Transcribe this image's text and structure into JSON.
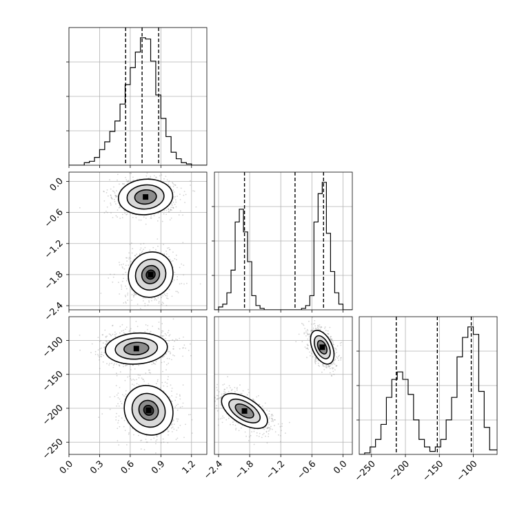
{
  "chart_data": {
    "type": "corner",
    "parameters": [
      {
        "axis_range": [
          0.0,
          1.35
        ],
        "ticks": [
          "0.0",
          "0.3",
          "0.6",
          "0.9",
          "1.2"
        ],
        "tick_values": [
          0.0,
          0.3,
          0.6,
          0.9,
          1.2
        ]
      },
      {
        "axis_range": [
          -2.48,
          0.18
        ],
        "ticks": [
          "-2.4",
          "-1.8",
          "-1.2",
          "-0.6",
          "0.0"
        ],
        "tick_values": [
          -2.4,
          -1.8,
          -1.2,
          -0.6,
          0.0
        ]
      },
      {
        "axis_range": [
          -268,
          -65
        ],
        "ticks": [
          "-250",
          "-200",
          "-150",
          "-100"
        ],
        "tick_values": [
          -250,
          -200,
          -150,
          -100
        ]
      }
    ],
    "histograms": [
      {
        "parameter": 0,
        "bin_edges": [
          0.0,
          0.05,
          0.1,
          0.15,
          0.2,
          0.25,
          0.3,
          0.35,
          0.4,
          0.45,
          0.5,
          0.55,
          0.6,
          0.65,
          0.7,
          0.75,
          0.8,
          0.85,
          0.9,
          0.95,
          1.0,
          1.05,
          1.1,
          1.15,
          1.2,
          1.25,
          1.3,
          1.35
        ],
        "counts": [
          0,
          0,
          0,
          2,
          3,
          6,
          12,
          18,
          26,
          34,
          47,
          62,
          75,
          87,
          98,
          97,
          80,
          54,
          36,
          22,
          10,
          5,
          2,
          1,
          0,
          0,
          0
        ],
        "quantiles": [
          0.555,
          0.716,
          0.878
        ]
      },
      {
        "parameter": 1,
        "bin_edges": [
          -2.48,
          -2.4,
          -2.32,
          -2.24,
          -2.16,
          -2.08,
          -2.0,
          -1.92,
          -1.84,
          -1.76,
          -1.68,
          -1.6,
          -1.52,
          -1.44,
          -1.36,
          -1.28,
          -1.2,
          -1.12,
          -1.04,
          -0.96,
          -0.88,
          -0.8,
          -0.72,
          -0.64,
          -0.56,
          -0.48,
          -0.4,
          -0.32,
          -0.24,
          -0.16,
          -0.08,
          0.0,
          0.08,
          0.18
        ],
        "counts": [
          0,
          2,
          4,
          12,
          28,
          62,
          71,
          55,
          34,
          10,
          3,
          1,
          0,
          0,
          0,
          0,
          0,
          0,
          0,
          0,
          0,
          1,
          3,
          10,
          62,
          82,
          90,
          54,
          27,
          12,
          4,
          0,
          0
        ],
        "quantiles": [
          -1.9,
          -0.925,
          -0.375
        ]
      },
      {
        "parameter": 2,
        "bin_edges": [
          -268,
          -260,
          -252,
          -244,
          -236,
          -228,
          -220,
          -212,
          -204,
          -196,
          -188,
          -180,
          -172,
          -164,
          -156,
          -148,
          -140,
          -132,
          -124,
          -116,
          -108,
          -100,
          -92,
          -84,
          -76,
          -65
        ],
        "counts": [
          0,
          1,
          5,
          10,
          20,
          38,
          50,
          55,
          50,
          40,
          23,
          10,
          5,
          2,
          5,
          10,
          23,
          38,
          65,
          78,
          85,
          80,
          42,
          18,
          3
        ],
        "quantiles": [
          -213.5,
          -153,
          -103
        ]
      }
    ],
    "contours_2d": [
      {
        "x_param": 0,
        "y_param": 1,
        "modes": [
          {
            "center": [
              0.75,
              -0.3
            ],
            "sx": 0.14,
            "sy": 0.18,
            "rot_deg": -5,
            "levels": [
              1.0,
              0.68,
              0.4
            ]
          },
          {
            "center": [
              0.8,
              -1.8
            ],
            "sx": 0.12,
            "sy": 0.22,
            "rot_deg": -52,
            "levels": [
              1.0,
              0.68,
              0.4,
              0.2
            ]
          }
        ]
      },
      {
        "x_param": 0,
        "y_param": 2,
        "modes": [
          {
            "center": [
              0.66,
              -112
            ],
            "sx": 0.16,
            "sy": 12,
            "rot_deg": -4,
            "levels": [
              1.0,
              0.68,
              0.4
            ]
          },
          {
            "center": [
              0.78,
              -203
            ],
            "sx": 0.12,
            "sy": 20,
            "rot_deg": -40,
            "levels": [
              1.0,
              0.68,
              0.4,
              0.2
            ]
          }
        ]
      },
      {
        "x_param": 1,
        "y_param": 2,
        "modes": [
          {
            "center": [
              -1.9,
              -204
            ],
            "sx": 0.13,
            "sy": 20,
            "rot_deg": -58,
            "levels": [
              1.0,
              0.68,
              0.4
            ]
          },
          {
            "center": [
              -0.4,
              -110
            ],
            "sx": 0.1,
            "sy": 14,
            "rot_deg": -25,
            "levels": [
              1.0,
              0.68,
              0.4
            ]
          }
        ]
      }
    ],
    "grid": true,
    "line_color": "#000000",
    "grid_color": "#b0b0b0",
    "scatter_color": "#7f7f7f"
  }
}
